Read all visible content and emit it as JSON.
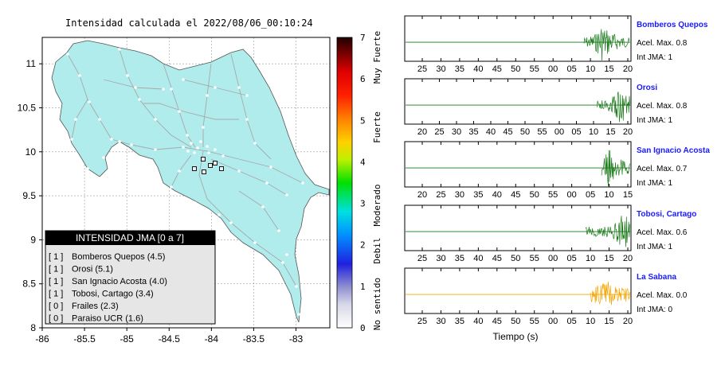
{
  "map": {
    "title": "Intensidad calculada el 2022/08/06_00:10:24",
    "x_ticks": [
      "-86",
      "-85.5",
      "-85",
      "-84.5",
      "-84",
      "-83.5",
      "-83"
    ],
    "y_ticks": [
      "11",
      "10.5",
      "10",
      "9.5",
      "9",
      "8.5",
      "8"
    ],
    "land_color": "#b0ecec",
    "legend": {
      "title": "INTENSIDAD JMA [0 a 7]",
      "items": [
        {
          "code": "[ 1 ]",
          "label": "Bomberos Quepos (4.5)"
        },
        {
          "code": "[ 1 ]",
          "label": "Orosi (5.1)"
        },
        {
          "code": "[ 1 ]",
          "label": "San Ignacio Acosta (4.0)"
        },
        {
          "code": "[ 1 ]",
          "label": "Tobosi, Cartago (3.4)"
        },
        {
          "code": "[ 0 ]",
          "label": "Frailes (2.3)"
        },
        {
          "code": "[ 0 ]",
          "label": "Paraiso UCR (1.6)"
        }
      ]
    }
  },
  "colorbar": {
    "ticks": [
      "7",
      "6",
      "5",
      "4",
      "3",
      "2",
      "1",
      "0"
    ],
    "categories": [
      "Muy Fuerte",
      "Fuerte",
      "Moderado",
      "Debil",
      "No sentido"
    ]
  },
  "traces": {
    "xlabel": "Tiempo (s)",
    "acc_prefix": "Acel. Max.",
    "int_prefix": "Int JMA:",
    "items": [
      {
        "station": "Bomberos Quepos",
        "acel": "0.8",
        "int": "1",
        "color": "#1a7a1a",
        "ticks": [
          "25",
          "30",
          "35",
          "40",
          "45",
          "50",
          "55",
          "00",
          "05",
          "10",
          "15",
          "20"
        ],
        "burst_start": 0.79,
        "peak_at": 0.87
      },
      {
        "station": "Orosi",
        "acel": "0.8",
        "int": "1",
        "color": "#1a7a1a",
        "ticks": [
          "20",
          "25",
          "30",
          "35",
          "40",
          "45",
          "50",
          "55",
          "00",
          "05",
          "10",
          "15",
          "20"
        ],
        "burst_start": 0.85,
        "peak_at": 0.95
      },
      {
        "station": "San Ignacio Acosta",
        "acel": "0.7",
        "int": "1",
        "color": "#1a7a1a",
        "ticks": [
          "20",
          "25",
          "30",
          "35",
          "40",
          "45",
          "50",
          "55",
          "00",
          "05",
          "10",
          "15"
        ],
        "burst_start": 0.87,
        "peak_at": 0.9
      },
      {
        "station": "Tobosi, Cartago",
        "acel": "0.6",
        "int": "1",
        "color": "#1a7a1a",
        "ticks": [
          "25",
          "30",
          "35",
          "40",
          "45",
          "50",
          "55",
          "00",
          "05",
          "10",
          "15",
          "20"
        ],
        "burst_start": 0.8,
        "peak_at": 0.96
      },
      {
        "station": "La Sabana",
        "acel": "0.0",
        "int": "0",
        "color": "#f4a500",
        "ticks": [
          "25",
          "30",
          "35",
          "40",
          "45",
          "50",
          "55",
          "00",
          "05",
          "10",
          "15",
          "20"
        ],
        "burst_start": 0.82,
        "peak_at": 0.9
      }
    ]
  },
  "chart_data": {
    "type": "map",
    "title": "Intensidad calculada el 2022/08/06_00:10:24",
    "xlim": [
      -86,
      -82.6
    ],
    "ylim": [
      8,
      11.3
    ],
    "colorbar_range": [
      0,
      7
    ],
    "stations": [
      {
        "name": "Bomberos Quepos",
        "intensity": 4.5,
        "jma": 1
      },
      {
        "name": "Orosi",
        "intensity": 5.1,
        "jma": 1
      },
      {
        "name": "San Ignacio Acosta",
        "intensity": 4.0,
        "jma": 1
      },
      {
        "name": "Tobosi, Cartago",
        "intensity": 3.4,
        "jma": 1
      },
      {
        "name": "Frailes",
        "intensity": 2.3,
        "jma": 0
      },
      {
        "name": "Paraiso UCR",
        "intensity": 1.6,
        "jma": 0
      }
    ],
    "traces": [
      {
        "station": "Bomberos Quepos",
        "acel_max": 0.8,
        "int_jma": 1
      },
      {
        "station": "Orosi",
        "acel_max": 0.8,
        "int_jma": 1
      },
      {
        "station": "San Ignacio Acosta",
        "acel_max": 0.7,
        "int_jma": 1
      },
      {
        "station": "Tobosi, Cartago",
        "acel_max": 0.6,
        "int_jma": 1
      },
      {
        "station": "La Sabana",
        "acel_max": 0.0,
        "int_jma": 0
      }
    ]
  }
}
